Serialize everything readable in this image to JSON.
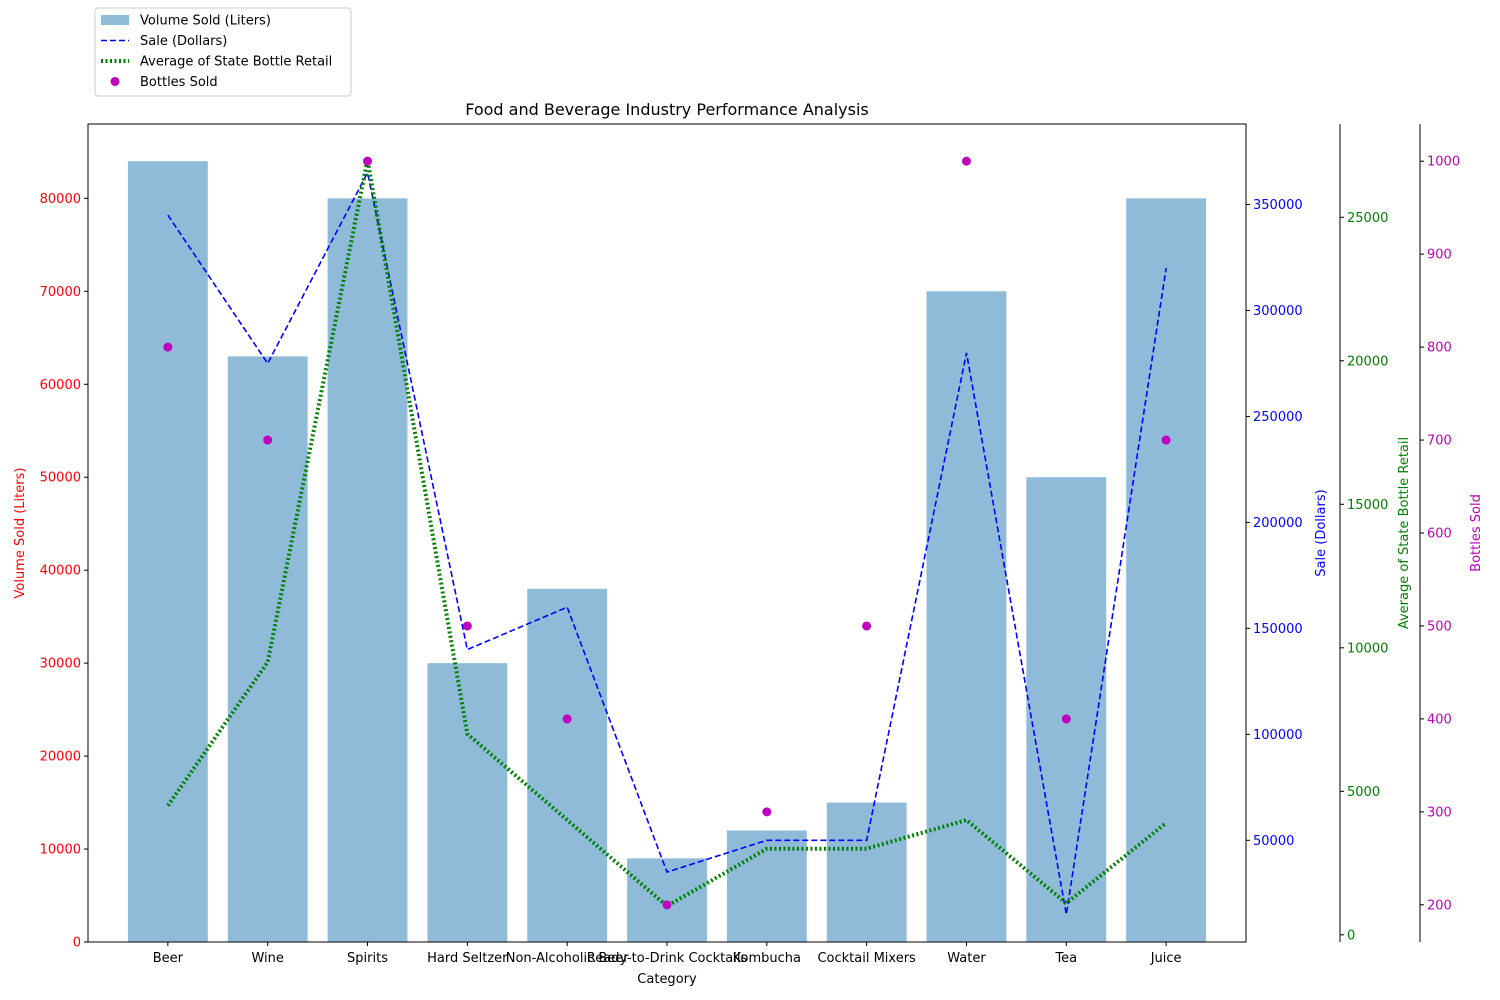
{
  "chart_data": {
    "type": "bar",
    "title": "Food and Beverage Industry Performance Analysis",
    "xlabel": "Category",
    "categories": [
      "Beer",
      "Wine",
      "Spirits",
      "Hard Seltzer",
      "Non-Alcoholic Beer",
      "Ready-to-Drink Cocktails",
      "Kombucha",
      "Cocktail Mixers",
      "Water",
      "Tea",
      "Juice"
    ],
    "legend_position": "top-left",
    "grid": false,
    "series": [
      {
        "name": "Volume Sold (Liters)",
        "kind": "bar",
        "axis": "left",
        "color": "#1f77b4",
        "ylabel": "Volume Sold (Liters)",
        "label_color": "#ff0000",
        "ylim": [
          0,
          88000
        ],
        "ticks": [
          0,
          10000,
          20000,
          30000,
          40000,
          50000,
          60000,
          70000,
          80000
        ],
        "values": [
          84000,
          63000,
          80000,
          30000,
          38000,
          9000,
          12000,
          15000,
          70000,
          50000,
          80000
        ]
      },
      {
        "name": "Sale (Dollars)",
        "kind": "line-dashed",
        "axis": "right1",
        "color": "#0000ff",
        "ylabel": "Sale (Dollars)",
        "label_color": "#0000ff",
        "ylim": [
          2000,
          388000
        ],
        "ticks": [
          50000,
          100000,
          150000,
          200000,
          250000,
          300000,
          350000
        ],
        "values": [
          345000,
          275000,
          365000,
          140000,
          160000,
          35000,
          50000,
          50000,
          280000,
          15000,
          320000
        ]
      },
      {
        "name": "Average of State Bottle Retail",
        "kind": "line-dotted",
        "axis": "right2",
        "color": "#008000",
        "ylabel": "Average of State Bottle Retail",
        "label_color": "#008000",
        "ylim": [
          -250,
          28250
        ],
        "ticks": [
          0,
          5000,
          10000,
          15000,
          20000,
          25000
        ],
        "values": [
          4500,
          9500,
          27000,
          7000,
          4000,
          1000,
          3000,
          3000,
          4000,
          1100,
          3900
        ]
      },
      {
        "name": "Bottles Sold",
        "kind": "scatter",
        "axis": "right3",
        "color": "#bf00bf",
        "ylabel": "Bottles Sold",
        "label_color": "#bf00bf",
        "ylim": [
          160,
          1040
        ],
        "ticks": [
          200,
          300,
          400,
          500,
          600,
          700,
          800,
          900,
          1000
        ],
        "values": [
          800,
          700,
          1000,
          500,
          400,
          200,
          300,
          500,
          1000,
          400,
          700
        ]
      }
    ]
  }
}
